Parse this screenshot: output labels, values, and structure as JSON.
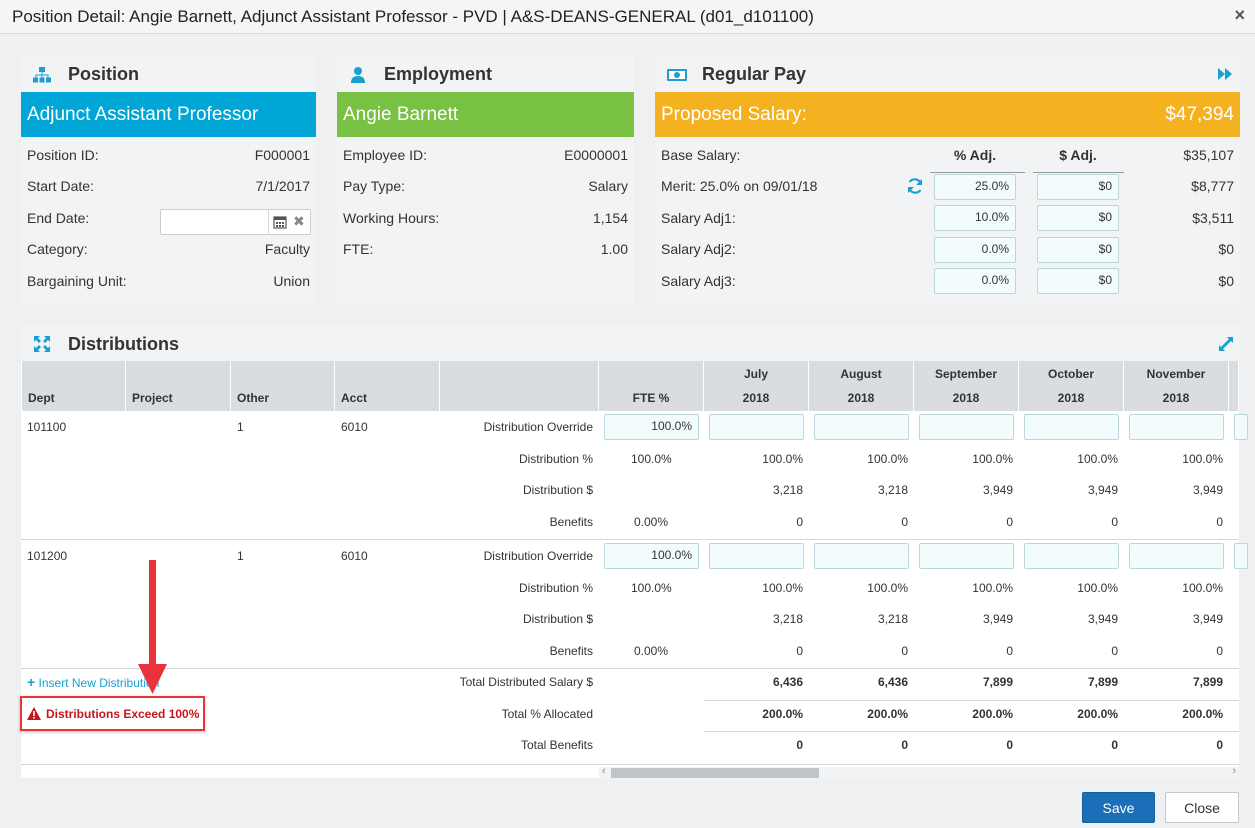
{
  "window": {
    "title": "Position Detail: Angie Barnett, Adjunct Assistant Professor - PVD | A&S-DEANS-GENERAL (d01_d101100)",
    "close_glyph": "×"
  },
  "position": {
    "title": "Position",
    "banner": "Adjunct Assistant Professor",
    "banner_color": "#00a6d6",
    "rows": [
      {
        "label": "Position ID:",
        "value": "F000001"
      },
      {
        "label": "Start Date:",
        "value": "7/1/2017"
      },
      {
        "label": "End Date:",
        "value": ""
      },
      {
        "label": "Category:",
        "value": "Faculty"
      },
      {
        "label": "Bargaining Unit:",
        "value": "Union"
      }
    ]
  },
  "employment": {
    "title": "Employment",
    "banner": "Angie Barnett",
    "banner_color": "#79c143",
    "rows": [
      {
        "label": "Employee ID:",
        "value": "E0000001"
      },
      {
        "label": "Pay Type:",
        "value": "Salary"
      },
      {
        "label": "Working Hours:",
        "value": "1,154"
      },
      {
        "label": "FTE:",
        "value": "1.00"
      }
    ]
  },
  "regular_pay": {
    "title": "Regular Pay",
    "banner": "Proposed Salary:",
    "banner_value": "$47,394",
    "banner_color": "#f5b220",
    "col_pct": "% Adj.",
    "col_dol": "$ Adj.",
    "rows": [
      {
        "label": "Base Salary:",
        "pct": "",
        "dol": "",
        "value": "$35,107"
      },
      {
        "label": "Merit: 25.0% on 09/01/18",
        "pct": "25.0%",
        "dol": "$0",
        "value": "$8,777"
      },
      {
        "label": "Salary Adj1:",
        "pct": "10.0%",
        "dol": "$0",
        "value": "$3,511"
      },
      {
        "label": "Salary Adj2:",
        "pct": "0.0%",
        "dol": "$0",
        "value": "$0"
      },
      {
        "label": "Salary Adj3:",
        "pct": "0.0%",
        "dol": "$0",
        "value": "$0"
      }
    ]
  },
  "distributions": {
    "title": "Distributions",
    "headers": {
      "dept": "Dept",
      "project": "Project",
      "other": "Other",
      "acct": "Acct",
      "fte": "FTE %"
    },
    "months": [
      {
        "month": "July",
        "year": "2018"
      },
      {
        "month": "August",
        "year": "2018"
      },
      {
        "month": "September",
        "year": "2018"
      },
      {
        "month": "October",
        "year": "2018"
      },
      {
        "month": "November",
        "year": "2018"
      }
    ],
    "row_labels": [
      "Distribution Override",
      "Distribution %",
      "Distribution $",
      "Benefits"
    ],
    "groups": [
      {
        "dept": "101100",
        "project": "",
        "other": "1",
        "acct": "6010",
        "override_fte": "100.0%",
        "dist_pct_fte": "100.0%",
        "benefits_fte": "0.00%",
        "dist_pct": [
          "100.0%",
          "100.0%",
          "100.0%",
          "100.0%",
          "100.0%"
        ],
        "dist_dol": [
          "3,218",
          "3,218",
          "3,949",
          "3,949",
          "3,949"
        ],
        "benefits": [
          "0",
          "0",
          "0",
          "0",
          "0"
        ]
      },
      {
        "dept": "101200",
        "project": "",
        "other": "1",
        "acct": "6010",
        "override_fte": "100.0%",
        "dist_pct_fte": "100.0%",
        "benefits_fte": "0.00%",
        "dist_pct": [
          "100.0%",
          "100.0%",
          "100.0%",
          "100.0%",
          "100.0%"
        ],
        "dist_dol": [
          "3,218",
          "3,218",
          "3,949",
          "3,949",
          "3,949"
        ],
        "benefits": [
          "0",
          "0",
          "0",
          "0",
          "0"
        ]
      }
    ],
    "insert_link": "Insert New Distribution",
    "warning": "Distributions Exceed 100%",
    "warning_color": "#c4161c",
    "totals": {
      "salary_label": "Total Distributed Salary $",
      "salary": [
        "6,436",
        "6,436",
        "7,899",
        "7,899",
        "7,899"
      ],
      "pct_label": "Total % Allocated",
      "pct": [
        "200.0%",
        "200.0%",
        "200.0%",
        "200.0%",
        "200.0%"
      ],
      "benefits_label": "Total Benefits",
      "benefits": [
        "0",
        "0",
        "0",
        "0",
        "0"
      ]
    }
  },
  "footer": {
    "save": "Save",
    "close": "Close"
  },
  "icons": {
    "position": "org-chart-icon",
    "employment": "user-icon",
    "regular_pay": "money-icon",
    "distributions": "arrows-expand-icon"
  },
  "accent": "#00a6d6"
}
